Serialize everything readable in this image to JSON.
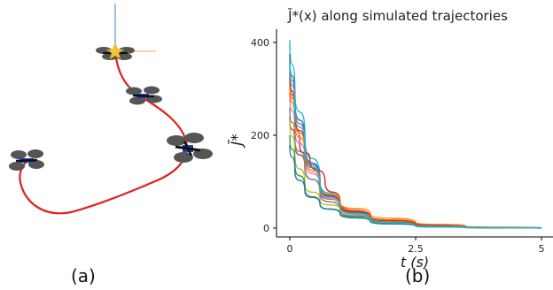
{
  "panels": {
    "a": {
      "caption": "(a)"
    },
    "b": {
      "caption": "(b)"
    }
  },
  "colors": {
    "trajectory": "#e02020",
    "goal_star": "#f4c430",
    "drone_body": "#1f3fbf",
    "rotor": "#555555"
  },
  "chart_data": {
    "type": "line",
    "title": "J̄*(x) along simulated trajectories",
    "xlabel": "t (s)",
    "ylabel": "J̄*",
    "xlim": [
      0,
      5
    ],
    "ylim": [
      0,
      400
    ],
    "xticks": [
      "0",
      "2.5",
      "5"
    ],
    "yticks": [
      "0",
      "200",
      "400"
    ],
    "grid": false,
    "series": [
      {
        "color": "#17becf",
        "points": [
          [
            0,
            405
          ],
          [
            0.1,
            300
          ],
          [
            0.3,
            200
          ],
          [
            0.6,
            100
          ],
          [
            1.0,
            50
          ],
          [
            1.6,
            20
          ],
          [
            2.5,
            6
          ],
          [
            3.5,
            2
          ],
          [
            5,
            0
          ]
        ]
      },
      {
        "color": "#1f77b4",
        "points": [
          [
            0,
            375
          ],
          [
            0.1,
            280
          ],
          [
            0.3,
            185
          ],
          [
            0.6,
            95
          ],
          [
            1.0,
            48
          ],
          [
            1.6,
            19
          ],
          [
            2.5,
            6
          ],
          [
            3.5,
            2
          ],
          [
            5,
            0
          ]
        ]
      },
      {
        "color": "#9467bd",
        "points": [
          [
            0,
            365
          ],
          [
            0.1,
            270
          ],
          [
            0.3,
            180
          ],
          [
            0.6,
            92
          ],
          [
            1.0,
            46
          ],
          [
            1.6,
            18
          ],
          [
            2.5,
            5
          ],
          [
            3.5,
            2
          ],
          [
            5,
            0
          ]
        ]
      },
      {
        "color": "#d62728",
        "points": [
          [
            0,
            330
          ],
          [
            0.1,
            245
          ],
          [
            0.2,
            175
          ],
          [
            0.4,
            150
          ],
          [
            0.7,
            100
          ],
          [
            1.0,
            55
          ],
          [
            1.6,
            22
          ],
          [
            2.5,
            7
          ],
          [
            3.5,
            2
          ],
          [
            5,
            0
          ]
        ]
      },
      {
        "color": "#ff7f0e",
        "points": [
          [
            0,
            320
          ],
          [
            0.1,
            240
          ],
          [
            0.3,
            170
          ],
          [
            0.6,
            90
          ],
          [
            1.0,
            55
          ],
          [
            1.6,
            30
          ],
          [
            2.5,
            12
          ],
          [
            3.5,
            4
          ],
          [
            5,
            0
          ]
        ]
      },
      {
        "color": "#8c564b",
        "points": [
          [
            0,
            240
          ],
          [
            0.1,
            185
          ],
          [
            0.3,
            130
          ],
          [
            0.6,
            80
          ],
          [
            1.0,
            45
          ],
          [
            1.6,
            25
          ],
          [
            2.5,
            10
          ],
          [
            3.5,
            3
          ],
          [
            5,
            0
          ]
        ]
      },
      {
        "color": "#e377c2",
        "points": [
          [
            0,
            290
          ],
          [
            0.1,
            215
          ],
          [
            0.3,
            150
          ],
          [
            0.6,
            85
          ],
          [
            1.0,
            42
          ],
          [
            1.6,
            17
          ],
          [
            2.5,
            5
          ],
          [
            3.5,
            2
          ],
          [
            5,
            0
          ]
        ]
      },
      {
        "color": "#7f7f7f",
        "points": [
          [
            0,
            260
          ],
          [
            0.1,
            195
          ],
          [
            0.3,
            135
          ],
          [
            0.6,
            75
          ],
          [
            1.0,
            38
          ],
          [
            1.6,
            15
          ],
          [
            2.5,
            5
          ],
          [
            3.5,
            2
          ],
          [
            5,
            0
          ]
        ]
      },
      {
        "color": "#bcbd22",
        "points": [
          [
            0,
            235
          ],
          [
            0.1,
            160
          ],
          [
            0.3,
            95
          ],
          [
            0.6,
            60
          ],
          [
            1.0,
            40
          ],
          [
            1.6,
            22
          ],
          [
            2.5,
            8
          ],
          [
            3.5,
            2
          ],
          [
            5,
            0
          ]
        ]
      },
      {
        "color": "#2ca02c",
        "points": [
          [
            0,
            200
          ],
          [
            0.1,
            140
          ],
          [
            0.3,
            85
          ],
          [
            0.6,
            50
          ],
          [
            1.0,
            32
          ],
          [
            1.6,
            18
          ],
          [
            2.5,
            6
          ],
          [
            3.5,
            2
          ],
          [
            5,
            0
          ]
        ]
      },
      {
        "color": "#1f77b4",
        "points": [
          [
            0,
            180
          ],
          [
            0.1,
            125
          ],
          [
            0.3,
            80
          ],
          [
            0.6,
            52
          ],
          [
            1.0,
            30
          ],
          [
            1.6,
            14
          ],
          [
            2.5,
            4
          ],
          [
            3.5,
            1
          ],
          [
            5,
            0
          ]
        ]
      },
      {
        "color": "#ff7f0e",
        "points": [
          [
            0,
            310
          ],
          [
            0.1,
            230
          ],
          [
            0.3,
            160
          ],
          [
            0.6,
            88
          ],
          [
            1.0,
            50
          ],
          [
            1.6,
            26
          ],
          [
            2.5,
            9
          ],
          [
            3.5,
            3
          ],
          [
            5,
            0
          ]
        ]
      },
      {
        "color": "#d62728",
        "points": [
          [
            0,
            340
          ],
          [
            0.1,
            250
          ],
          [
            0.3,
            170
          ],
          [
            0.6,
            90
          ],
          [
            1.0,
            48
          ],
          [
            1.6,
            24
          ],
          [
            2.5,
            8
          ],
          [
            3.5,
            2
          ],
          [
            5,
            0
          ]
        ]
      },
      {
        "color": "#17becf",
        "points": [
          [
            0,
            355
          ],
          [
            0.1,
            260
          ],
          [
            0.3,
            175
          ],
          [
            0.6,
            88
          ],
          [
            1.0,
            45
          ],
          [
            1.6,
            18
          ],
          [
            2.5,
            5
          ],
          [
            3.5,
            2
          ],
          [
            5,
            0
          ]
        ]
      }
    ]
  }
}
